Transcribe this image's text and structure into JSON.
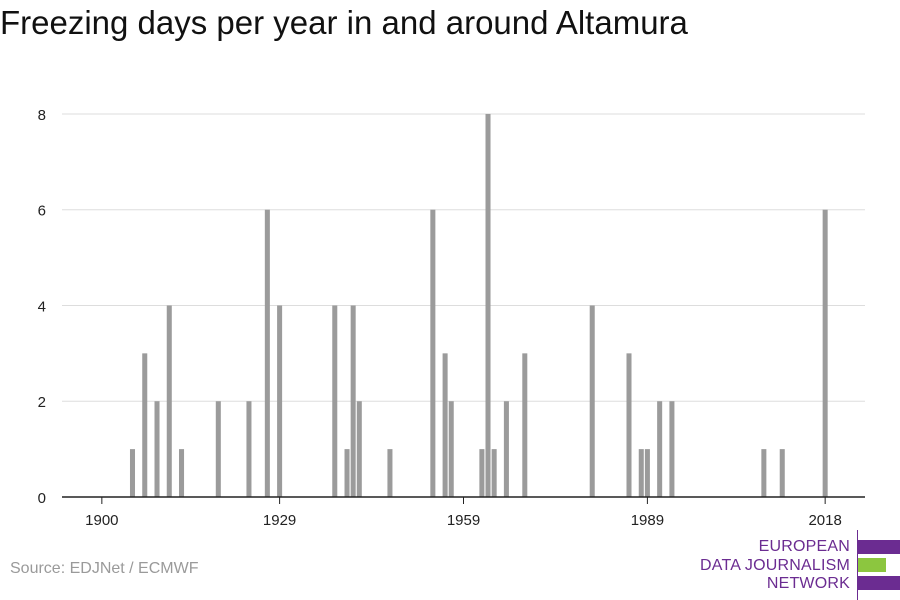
{
  "chart_data": {
    "type": "bar",
    "title": "Freezing days per year in and around Altamura",
    "xlabel": "",
    "ylabel": "",
    "xlim": [
      1893.5,
      2024.5
    ],
    "ylim": [
      0,
      8.5
    ],
    "x_ticks": [
      1900,
      1929,
      1959,
      1989,
      2018
    ],
    "y_ticks": [
      0,
      2,
      4,
      6,
      8
    ],
    "grid": true,
    "series": [
      {
        "x": [
          1905,
          1907,
          1909,
          1911,
          1913,
          1919,
          1924,
          1927,
          1929,
          1938,
          1940,
          1941,
          1942,
          1947,
          1954,
          1956,
          1957,
          1962,
          1963,
          1964,
          1966,
          1969,
          1980,
          1986,
          1988,
          1989,
          1991,
          1993,
          2008,
          2011,
          2018
        ],
        "values": [
          1,
          3,
          2,
          4,
          1,
          2,
          2,
          6,
          4,
          4,
          1,
          4,
          2,
          1,
          6,
          3,
          2,
          1,
          8,
          1,
          2,
          3,
          4,
          3,
          1,
          1,
          2,
          2,
          1,
          1,
          6
        ]
      }
    ],
    "bar_color": "#9b9b9b"
  },
  "footer": {
    "source": "Source: EDJNet / ECMWF"
  },
  "logo": {
    "line1": "EUROPEAN",
    "line2": "DATA JOURNALISM",
    "line3": "NETWORK",
    "colors": {
      "purple": "#6b2c91",
      "green": "#8cc63f"
    }
  }
}
